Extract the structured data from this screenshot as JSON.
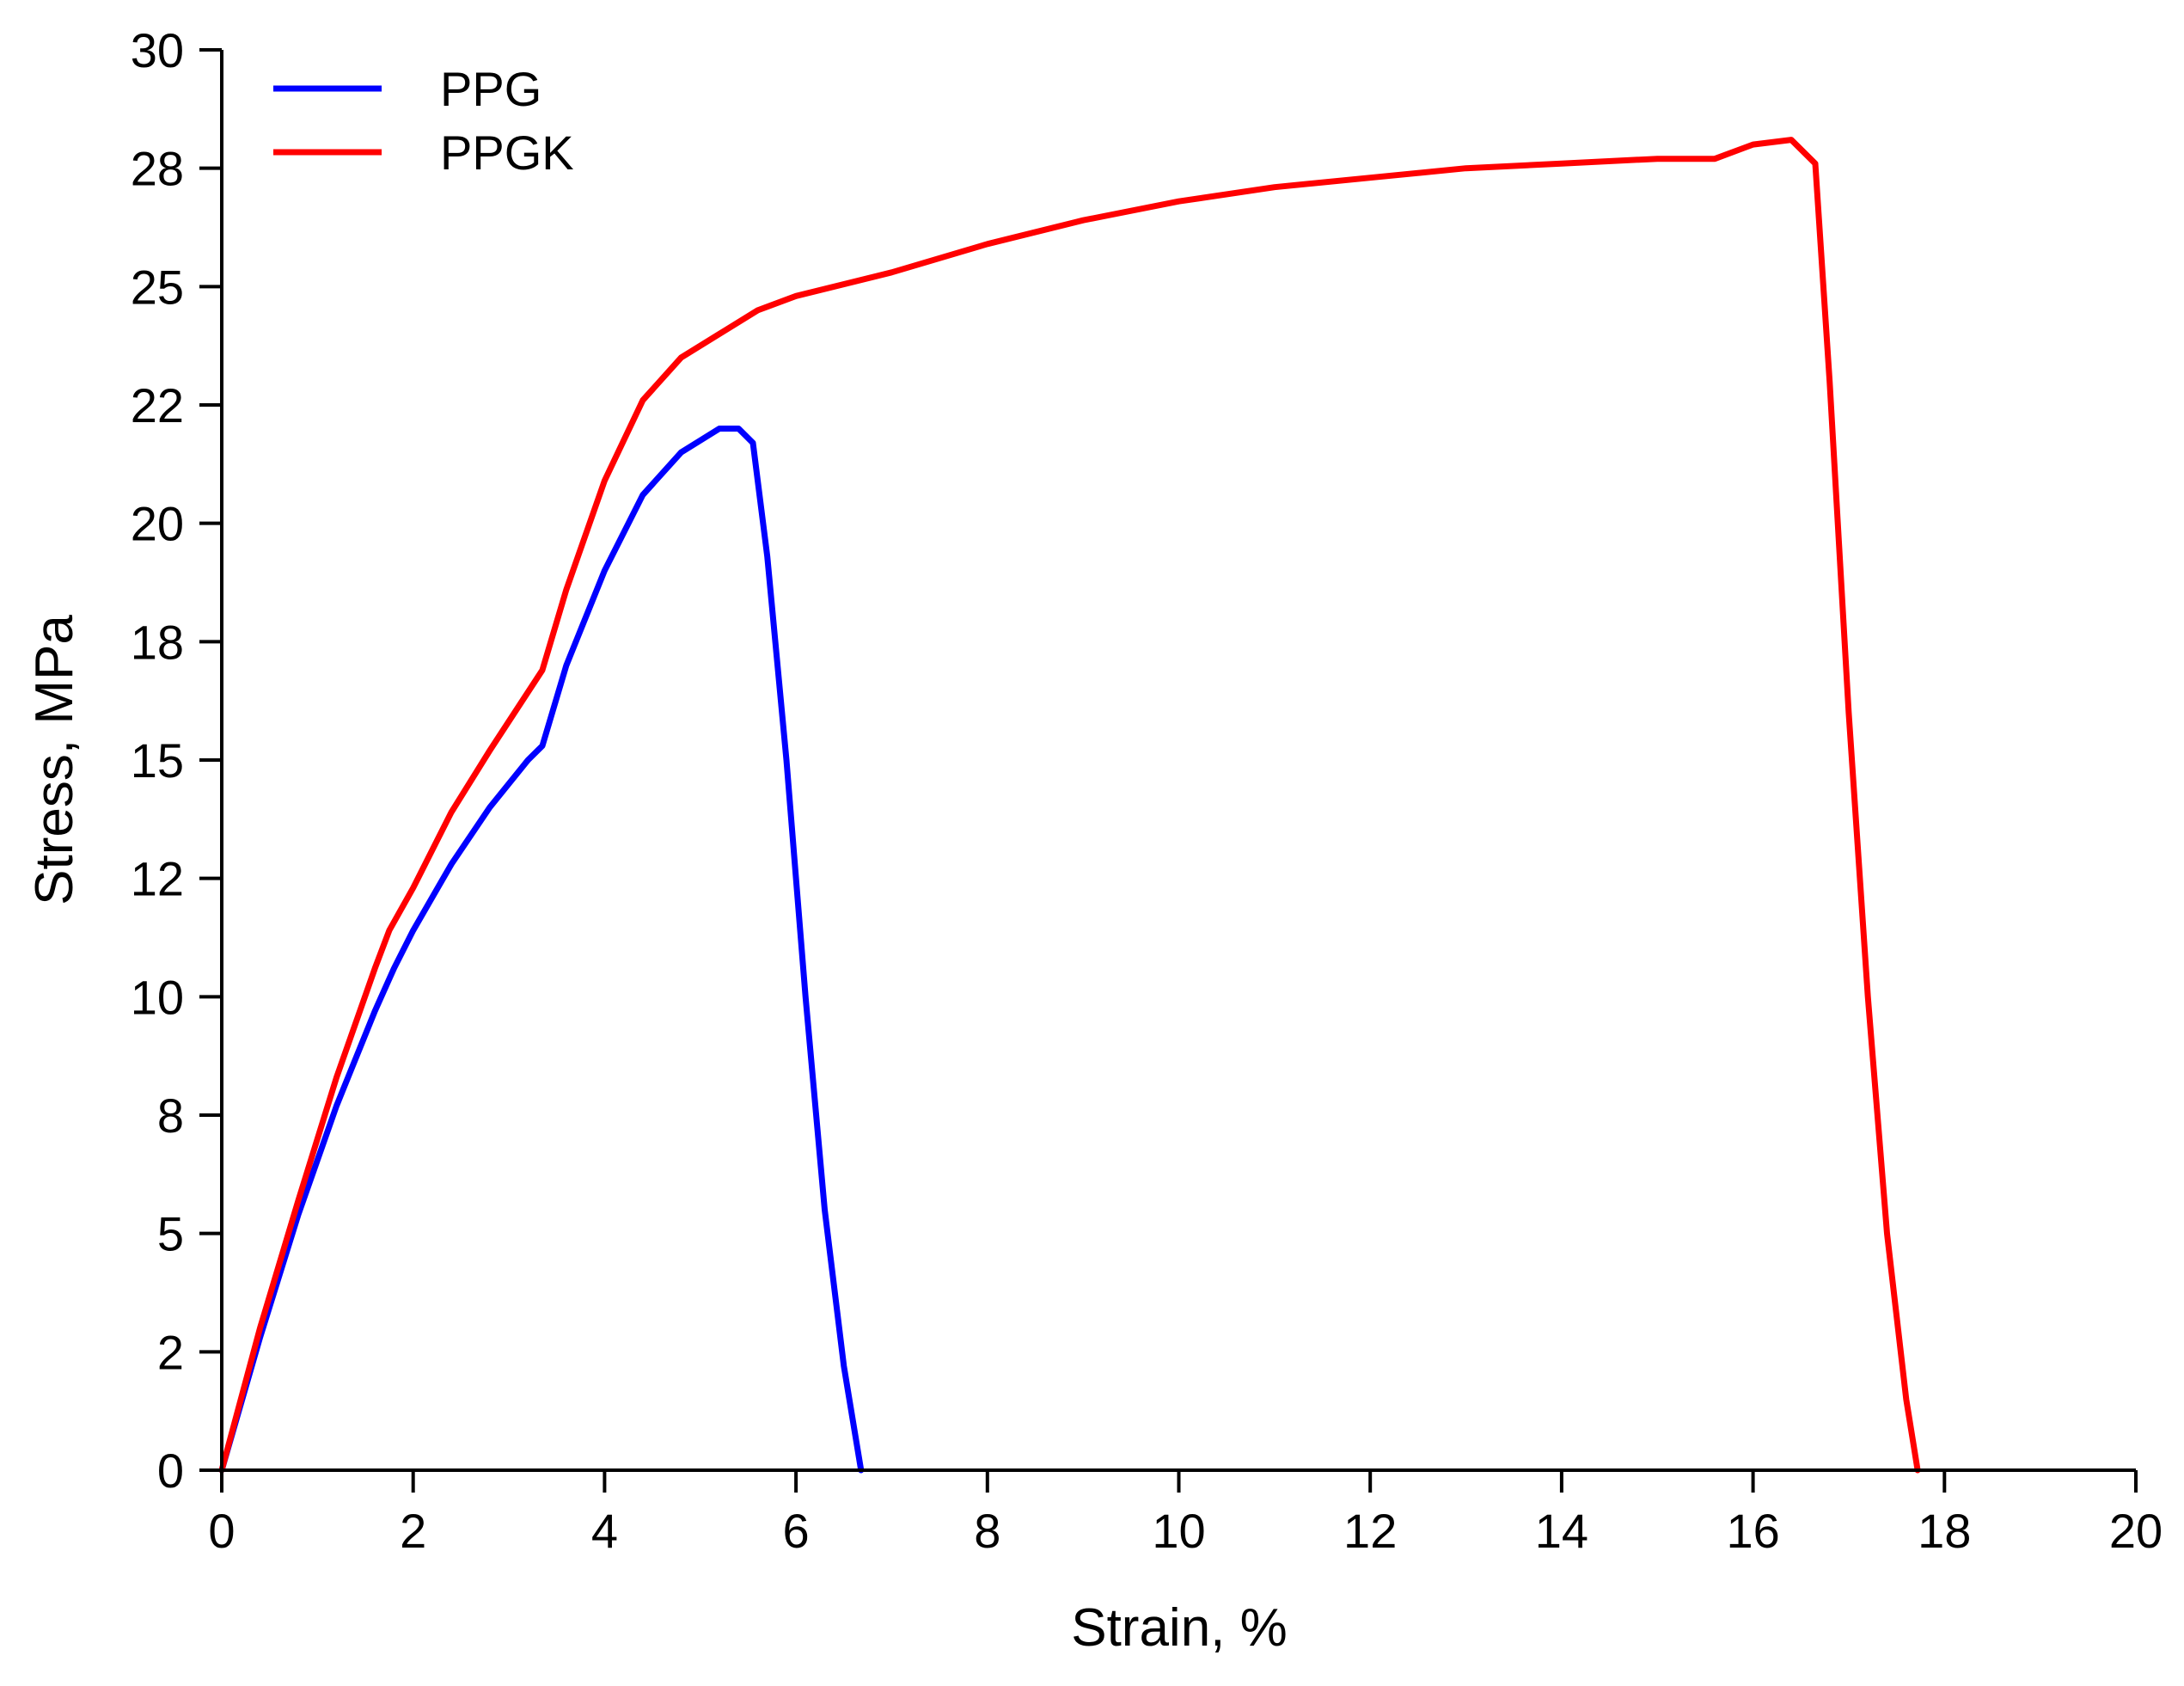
{
  "chart_data": {
    "type": "line",
    "title": "",
    "xlabel": "Strain, %",
    "ylabel": "Stress, MPa",
    "xlim": [
      0,
      20
    ],
    "ylim": [
      0,
      30
    ],
    "x_ticks": [
      0,
      2,
      4,
      6,
      8,
      10,
      12,
      14,
      16,
      18,
      20
    ],
    "x_tick_labels": [
      "0",
      "2",
      "4",
      "6",
      "8",
      "10",
      "12",
      "14",
      "16",
      "18",
      "20"
    ],
    "y_ticks": [
      0,
      2.5,
      5,
      7.5,
      10,
      12.5,
      15,
      17.5,
      20,
      22.5,
      25,
      27.5,
      30
    ],
    "y_tick_labels": [
      "0",
      "2",
      "5",
      "8",
      "10",
      "12",
      "15",
      "18",
      "20",
      "22",
      "25",
      "28",
      "30"
    ],
    "grid": false,
    "legend_position": "top-left",
    "series": [
      {
        "name": "PPG",
        "color": "#0000ff",
        "x": [
          0,
          0.4,
          0.8,
          1.2,
          1.6,
          1.8,
          2.0,
          2.4,
          2.8,
          3.2,
          3.35,
          3.6,
          4.0,
          4.4,
          4.8,
          5.2,
          5.4,
          5.55,
          5.7,
          5.9,
          6.1,
          6.3,
          6.5,
          6.68
        ],
        "y": [
          0,
          2.8,
          5.4,
          7.7,
          9.7,
          10.6,
          11.4,
          12.8,
          14.0,
          15.0,
          15.3,
          17.0,
          19.0,
          20.6,
          21.5,
          22.0,
          22.0,
          21.7,
          19.3,
          15.0,
          10.0,
          5.5,
          2.2,
          0
        ]
      },
      {
        "name": "PPGK",
        "color": "#ff0000",
        "x": [
          0,
          0.4,
          0.8,
          1.2,
          1.6,
          1.75,
          2.0,
          2.4,
          2.8,
          3.35,
          3.6,
          4.0,
          4.4,
          4.8,
          5.2,
          5.6,
          6.0,
          7.0,
          8.0,
          9.0,
          10.0,
          11.0,
          12.0,
          13.0,
          14.0,
          15.0,
          15.6,
          16.0,
          16.4,
          16.65,
          16.8,
          17.0,
          17.2,
          17.4,
          17.6,
          17.72
        ],
        "y": [
          0,
          3.0,
          5.7,
          8.3,
          10.6,
          11.4,
          12.3,
          13.9,
          15.2,
          16.9,
          18.6,
          20.9,
          22.6,
          23.5,
          24.0,
          24.5,
          24.8,
          25.3,
          25.9,
          26.4,
          26.8,
          27.1,
          27.3,
          27.5,
          27.6,
          27.7,
          27.7,
          28.0,
          28.1,
          27.6,
          23.0,
          16.0,
          10.0,
          5.0,
          1.5,
          0
        ]
      }
    ]
  }
}
